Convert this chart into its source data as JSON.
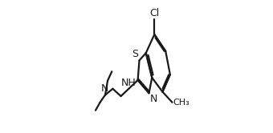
{
  "bg_color": "#ffffff",
  "line_color": "#1a1a1a",
  "line_width": 1.6,
  "font_size": 9.0,
  "figsize": [
    3.4,
    1.66
  ],
  "dpi": 100,
  "xlim": [
    0.0,
    1.0
  ],
  "ylim": [
    0.0,
    1.0
  ]
}
